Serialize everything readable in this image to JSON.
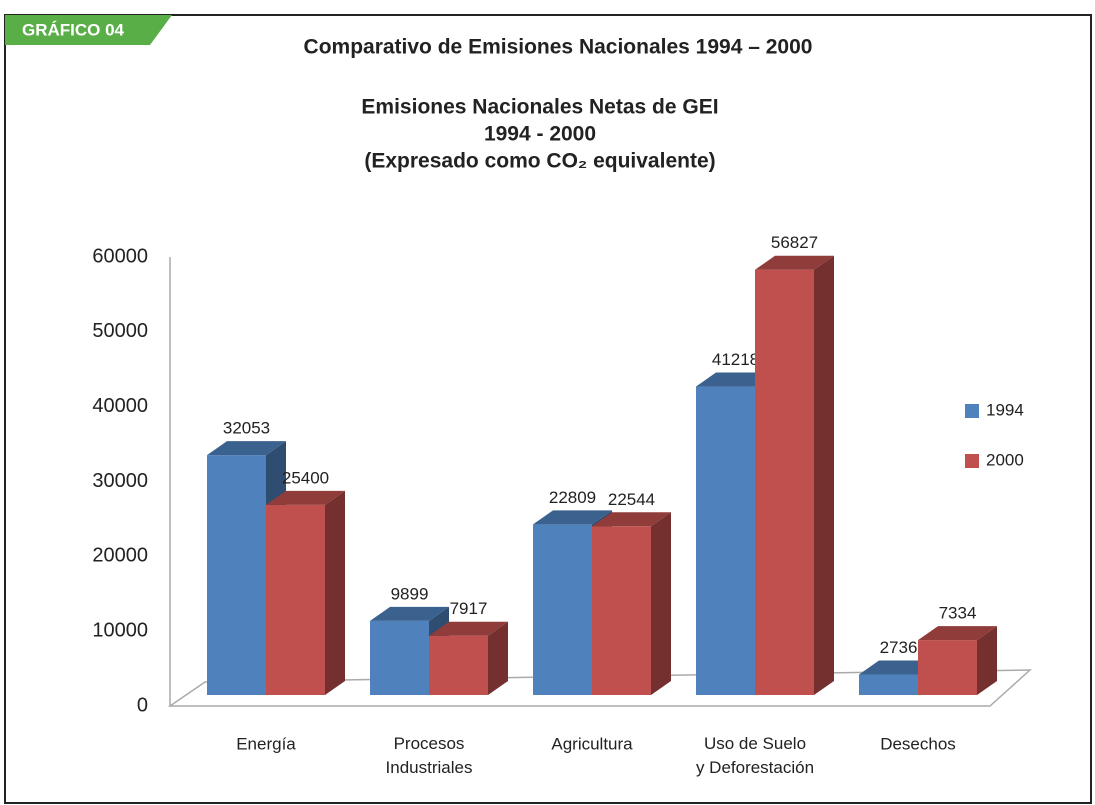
{
  "header": "GRÁFICO 04",
  "page_title": "Comparativo de Emisiones Nacionales 1994 – 2000",
  "chart_data": {
    "type": "bar3d",
    "title_lines": [
      "Emisiones Nacionales Netas de GEI",
      "1994 - 2000",
      "(Expresado como CO₂ equivalente)"
    ],
    "categories": [
      "Energía",
      "Procesos\nIndustriales",
      "Agricultura",
      "Uso de Suelo\ny Deforestación",
      "Desechos"
    ],
    "series": [
      {
        "name": "1994",
        "color": "#4f81bd",
        "values": [
          32053,
          9899,
          22809,
          41218,
          2736
        ]
      },
      {
        "name": "2000",
        "color": "#c0504d",
        "values": [
          25400,
          7917,
          22544,
          56827,
          7334
        ]
      }
    ],
    "ylim": [
      0,
      60000
    ],
    "yticks": [
      0,
      10000,
      20000,
      30000,
      40000,
      50000,
      60000
    ],
    "grid": false,
    "legend": "right"
  }
}
